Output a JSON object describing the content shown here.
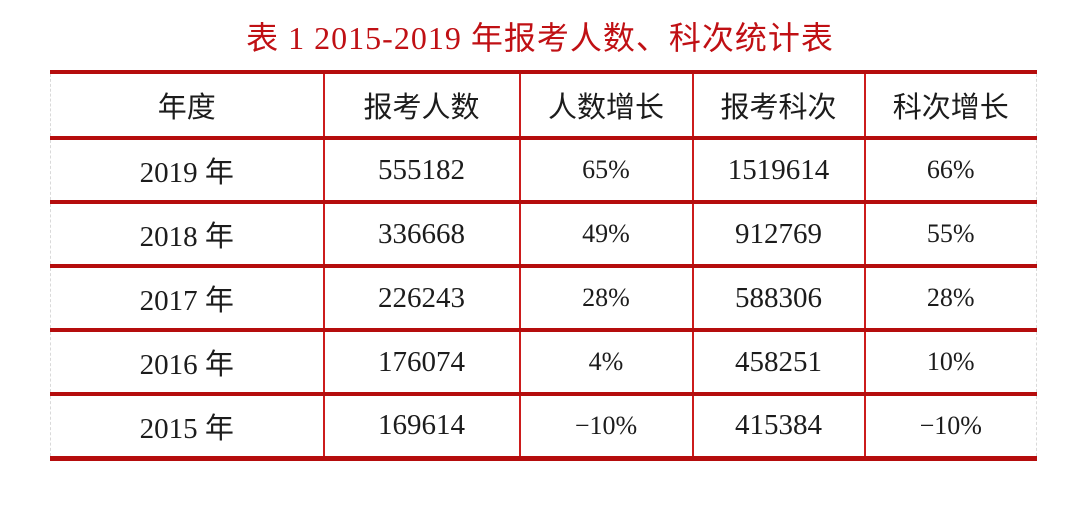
{
  "title": "表 1 2015-2019 年报考人数、科次统计表",
  "table": {
    "headers": [
      "年度",
      "报考人数",
      "人数增长",
      "报考科次",
      "科次增长"
    ],
    "rows": [
      [
        "2019 年",
        "555182",
        "65%",
        "1519614",
        "66%"
      ],
      [
        "2018 年",
        "336668",
        "49%",
        "912769",
        "55%"
      ],
      [
        "2017 年",
        "226243",
        "28%",
        "588306",
        "28%"
      ],
      [
        "2016 年",
        "176074",
        "4%",
        "458251",
        "10%"
      ],
      [
        "2015 年",
        "169614",
        "−10%",
        "415384",
        "−10%"
      ]
    ]
  },
  "colors": {
    "title_red": "#c01014",
    "rule_red": "#b50d0d",
    "grid_red": "#cc1c1c",
    "text": "#1c1c1c",
    "edge_dash": "#d9d9d9",
    "background": "#ffffff"
  }
}
